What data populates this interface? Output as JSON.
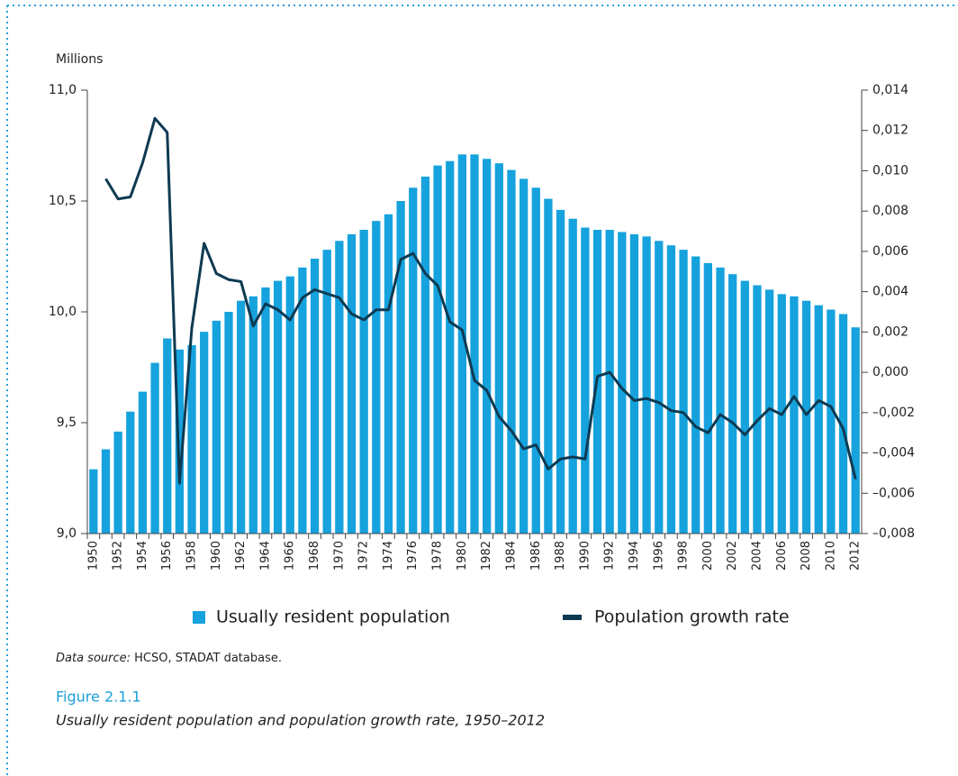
{
  "chart_data": {
    "type": "bar_line",
    "ylabel": "Millions",
    "categories": [
      "1950",
      null,
      "1952",
      null,
      "1954",
      null,
      "1956",
      null,
      "1958",
      null,
      "1960",
      null,
      "1962",
      null,
      "1964",
      null,
      "1966",
      null,
      "1968",
      null,
      "1970",
      null,
      "1972",
      null,
      "1974",
      null,
      "1976",
      null,
      "1978",
      null,
      "1980",
      null,
      "1982",
      null,
      "1984",
      null,
      "1986",
      null,
      "1988",
      null,
      "1990",
      null,
      "1992",
      null,
      "1994",
      null,
      "1996",
      null,
      "1998",
      null,
      "2000",
      null,
      "2002",
      null,
      "2004",
      null,
      "2006",
      null,
      "2008",
      null,
      "2010",
      null,
      "2012"
    ],
    "series": [
      {
        "name": "Usually resident population",
        "type": "bar",
        "color": "#16a2dd",
        "values": [
          9.29,
          9.38,
          9.46,
          9.55,
          9.64,
          9.77,
          9.88,
          9.83,
          9.85,
          9.91,
          9.96,
          10.0,
          10.05,
          10.07,
          10.11,
          10.14,
          10.16,
          10.2,
          10.24,
          10.28,
          10.32,
          10.35,
          10.37,
          10.41,
          10.44,
          10.5,
          10.56,
          10.61,
          10.66,
          10.68,
          10.71,
          10.71,
          10.69,
          10.67,
          10.64,
          10.6,
          10.56,
          10.51,
          10.46,
          10.42,
          10.38,
          10.37,
          10.37,
          10.36,
          10.35,
          10.34,
          10.32,
          10.3,
          10.28,
          10.25,
          10.22,
          10.2,
          10.17,
          10.14,
          10.12,
          10.1,
          10.08,
          10.07,
          10.05,
          10.03,
          10.01,
          9.99,
          9.93
        ]
      },
      {
        "name": "Population growth rate",
        "type": "line",
        "axis": "y2",
        "color": "#0e3a52",
        "values": [
          null,
          0.0096,
          0.0086,
          0.0087,
          0.0104,
          0.0126,
          0.0119,
          -0.0055,
          0.0022,
          0.0064,
          0.0049,
          0.0046,
          0.0045,
          0.0023,
          0.0034,
          0.0031,
          0.0026,
          0.0037,
          0.0041,
          0.0039,
          0.0037,
          0.0029,
          0.0026,
          0.0031,
          0.0031,
          0.0056,
          0.0059,
          0.0049,
          0.0043,
          0.0025,
          0.0021,
          -0.0004,
          -0.0009,
          -0.0022,
          -0.0029,
          -0.0038,
          -0.0036,
          -0.0048,
          -0.0043,
          -0.0042,
          -0.0043,
          -0.0002,
          0.0,
          -0.0008,
          -0.0014,
          -0.0013,
          -0.0015,
          -0.0019,
          -0.002,
          -0.0027,
          -0.003,
          -0.0021,
          -0.0025,
          -0.0031,
          -0.0024,
          -0.0018,
          -0.0021,
          -0.0012,
          -0.0021,
          -0.0014,
          -0.0017,
          -0.0028,
          -0.0053
        ]
      }
    ],
    "ylim": [
      9.0,
      11.0
    ],
    "yticks": [
      {
        "value": 9.0,
        "label": "9,0"
      },
      {
        "value": 9.5,
        "label": "9,5"
      },
      {
        "value": 10.0,
        "label": "10,0"
      },
      {
        "value": 10.5,
        "label": "10,5"
      },
      {
        "value": 11.0,
        "label": "11,0"
      }
    ],
    "y2lim": [
      -0.008,
      0.014
    ],
    "y2ticks": [
      {
        "value": -0.008,
        "label": "–0,008"
      },
      {
        "value": -0.006,
        "label": "–0,006"
      },
      {
        "value": -0.004,
        "label": "–0,004"
      },
      {
        "value": -0.002,
        "label": "–0,002"
      },
      {
        "value": 0,
        "label": "0,000"
      },
      {
        "value": 0.002,
        "label": "0,002"
      },
      {
        "value": 0.004,
        "label": "0,004"
      },
      {
        "value": 0.006,
        "label": "0,006"
      },
      {
        "value": 0.008,
        "label": "0,008"
      },
      {
        "value": 0.01,
        "label": "0,010"
      },
      {
        "value": 0.012,
        "label": "0,012"
      },
      {
        "value": 0.014,
        "label": "0,014"
      }
    ],
    "legend": "bottom",
    "source_label": "Data source:",
    "source": "HCSO, STADAT database.",
    "figure_number": "Figure 2.1.1",
    "caption": "Usually resident population and population growth rate, 1950–2012"
  }
}
